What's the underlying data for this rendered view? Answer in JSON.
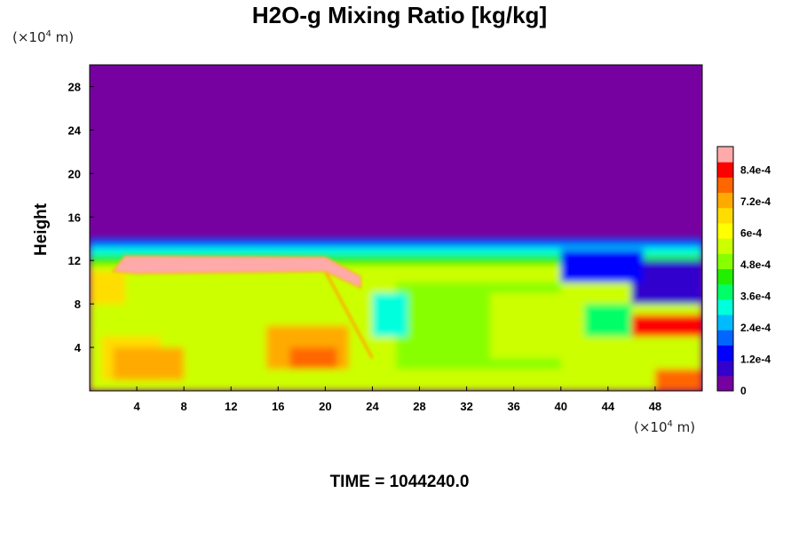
{
  "chart_data": {
    "type": "heatmap",
    "title": "H2O-g Mixing Ratio [kg/kg]",
    "xlabel": "",
    "ylabel": "Height",
    "x_unit_base": "(×10",
    "x_unit_exp": "4",
    "x_unit_tail": " m)",
    "y_unit_base": "(×10",
    "y_unit_exp": "4",
    "y_unit_tail": " m)",
    "xlim": [
      0,
      52
    ],
    "ylim": [
      0,
      30
    ],
    "x_ticks": [
      "4",
      "8",
      "12",
      "16",
      "20",
      "24",
      "28",
      "32",
      "36",
      "40",
      "44",
      "48"
    ],
    "x_tick_values": [
      4,
      8,
      12,
      16,
      20,
      24,
      28,
      32,
      36,
      40,
      44,
      48
    ],
    "y_ticks": [
      "4",
      "8",
      "12",
      "16",
      "20",
      "24",
      "28"
    ],
    "y_tick_values": [
      4,
      8,
      12,
      16,
      20,
      24,
      28
    ],
    "colorbar": {
      "range": [
        0,
        0.00093
      ],
      "tick_labels": [
        "0",
        "1.2e-4",
        "2.4e-4",
        "3.6e-4",
        "4.8e-4",
        "6e-4",
        "7.2e-4",
        "8.4e-4"
      ],
      "tick_values": [
        0,
        0.00012,
        0.00024,
        0.00036,
        0.00048,
        0.0006,
        0.00072,
        0.00084
      ],
      "colors": [
        "#7700a0",
        "#3300cc",
        "#0000ff",
        "#0066ff",
        "#00bbff",
        "#00ffdd",
        "#00ff66",
        "#22ee00",
        "#88ff00",
        "#ccff00",
        "#ffff00",
        "#ffdd00",
        "#ffaa00",
        "#ff6600",
        "#ff0000",
        "#ffaaaa"
      ]
    },
    "field_summary": {
      "upper_region_value": 0,
      "boundary_layer_top_height": 14,
      "dominant_lower_value": 0.00054,
      "plume_cap_x_range": [
        2,
        23
      ],
      "plume_cap_height": 12,
      "plume_cap_value": 0.0009
    },
    "time_label": "TIME = 1044240.0"
  }
}
